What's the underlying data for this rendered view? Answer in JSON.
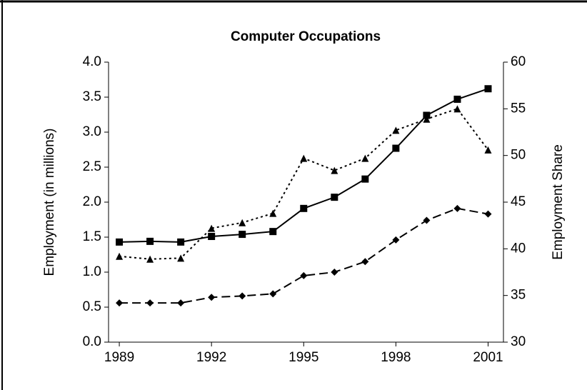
{
  "chart_data": {
    "type": "line",
    "title": "Computer Occupations",
    "y_label": "Employment (in millions)",
    "y2_label": "Employment Share",
    "x": [
      1989,
      1990,
      1991,
      1992,
      1993,
      1994,
      1995,
      1996,
      1997,
      1998,
      1999,
      2000,
      2001
    ],
    "xlim": [
      1988.65,
      2001.5
    ],
    "xticks": [
      1989,
      1992,
      1995,
      1998,
      2001
    ],
    "ylim": [
      0,
      4
    ],
    "yticks": [
      {
        "value": 0,
        "label": "0.0"
      },
      {
        "value": 0.5,
        "label": "0.5"
      },
      {
        "value": 1,
        "label": "1.0"
      },
      {
        "value": 1.5,
        "label": "1.5"
      },
      {
        "value": 2,
        "label": "2.0"
      },
      {
        "value": 2.5,
        "label": "2.5"
      },
      {
        "value": 3,
        "label": "3.0"
      },
      {
        "value": 3.5,
        "label": "3.5"
      },
      {
        "value": 4,
        "label": "4.0"
      }
    ],
    "y2lim": [
      30,
      60
    ],
    "y2ticks": [
      30,
      35,
      40,
      45,
      50,
      55,
      60
    ],
    "grid": false,
    "series": [
      {
        "color": "#000000",
        "dash": "solid",
        "marker": "square",
        "values": [
          1.43,
          1.44,
          1.43,
          1.51,
          1.54,
          1.58,
          1.91,
          2.07,
          2.33,
          2.77,
          3.24,
          3.47,
          3.62
        ]
      },
      {
        "color": "#000000",
        "dash": "dashed",
        "marker": "diamond",
        "values": [
          0.56,
          0.56,
          0.56,
          0.64,
          0.66,
          0.69,
          0.95,
          1.0,
          1.15,
          1.46,
          1.74,
          1.91,
          1.83
        ]
      },
      {
        "color": "#000000",
        "dash": "dotted",
        "marker": "triangle",
        "axis": "y2",
        "values": [
          39.2,
          38.9,
          39.0,
          42.2,
          42.8,
          43.8,
          49.7,
          48.4,
          49.7,
          52.7,
          53.9,
          55.0,
          50.6
        ]
      }
    ]
  }
}
